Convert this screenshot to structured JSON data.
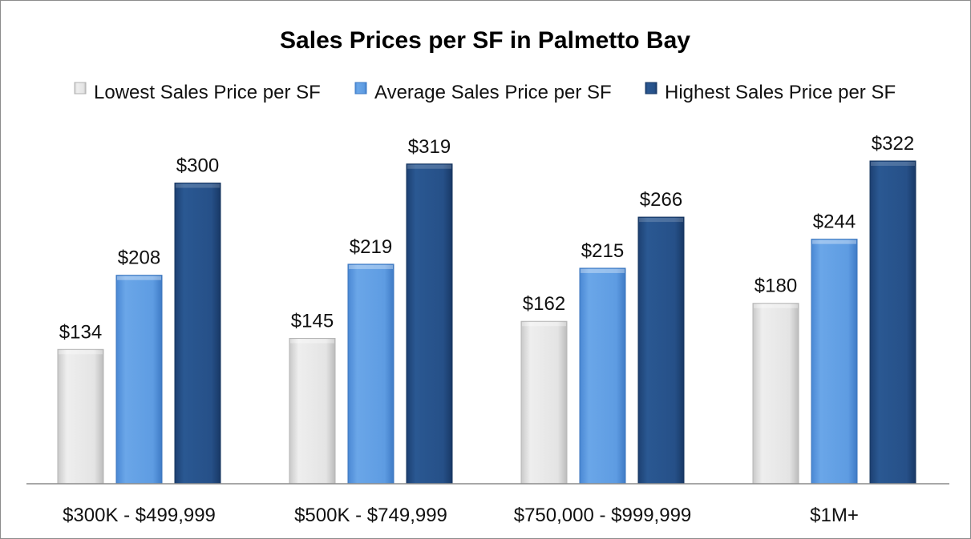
{
  "chart_data": {
    "type": "bar",
    "title": "Sales Prices per SF in Palmetto Bay",
    "xlabel": "",
    "ylabel": "",
    "categories": [
      "$300K - $499,999",
      "$500K - $749,999",
      "$750,000 - $999,999",
      "$1M+"
    ],
    "series": [
      {
        "name": "Lowest Sales Price per SF",
        "values": [
          134,
          145,
          162,
          180
        ],
        "labels": [
          "$134",
          "$145",
          "$162",
          "$180"
        ],
        "color": "#e6e6e6"
      },
      {
        "name": "Average Sales Price per SF",
        "values": [
          208,
          219,
          215,
          244
        ],
        "labels": [
          "$208",
          "$219",
          "$215",
          "$244"
        ],
        "color": "#5b9be0"
      },
      {
        "name": "Highest Sales Price per SF",
        "values": [
          300,
          319,
          266,
          322
        ],
        "labels": [
          "$300",
          "$319",
          "$266",
          "$322"
        ],
        "color": "#244f86"
      }
    ],
    "ylim": [
      0,
      400
    ],
    "grid": false,
    "legend_position": "top",
    "data_labels": true
  }
}
